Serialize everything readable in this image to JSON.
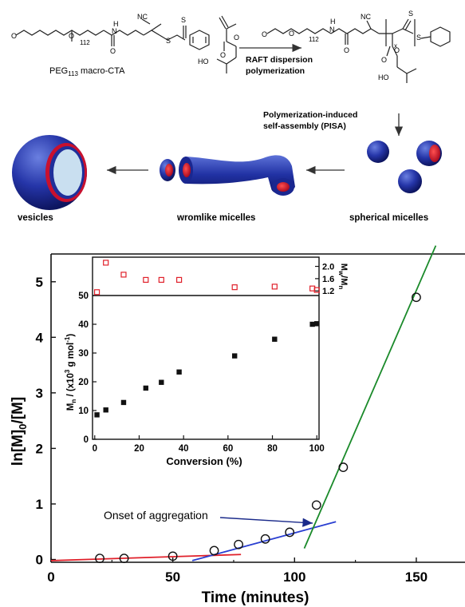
{
  "scheme": {
    "macro_cta_label": "PEG",
    "macro_cta_sub": "113",
    "macro_cta_suffix": " macro-CTA",
    "peg_repeat_sub": "112",
    "nc_label": "NC",
    "s_label": "S",
    "o_label": "O",
    "h_label": "H",
    "n_label": "N",
    "ho_label": "HO",
    "x_sub": "x",
    "raft_label_1": "RAFT dispersion",
    "raft_label_2": "polymerization",
    "pisa_label_1": "Polymerization-induced",
    "pisa_label_2": "self-assembly (PISA)",
    "morphologies": [
      {
        "label": "vesicles"
      },
      {
        "label": "wromlike micelles"
      },
      {
        "label": "spherical micelles"
      }
    ],
    "colors": {
      "core_red": "#c8102e",
      "corona_blue": "#1f2f9a",
      "lumen": "#c9dff0"
    }
  },
  "chart_data": [
    {
      "type": "scatter",
      "xlabel": "Time (minutes)",
      "ylabel_text": "ln[M]",
      "ylabel_sub1": "0",
      "ylabel_tail": "/[M]",
      "xlim": [
        0,
        170
      ],
      "ylim": [
        -0.05,
        5.5
      ],
      "xticks": [
        0,
        50,
        100,
        150
      ],
      "yticks": [
        0,
        1,
        2,
        3,
        4,
        5
      ],
      "annotation": "Onset of aggregation",
      "points": [
        {
          "x": 20,
          "y": 0.02
        },
        {
          "x": 30,
          "y": 0.02
        },
        {
          "x": 50,
          "y": 0.06
        },
        {
          "x": 67,
          "y": 0.16
        },
        {
          "x": 77,
          "y": 0.27
        },
        {
          "x": 88,
          "y": 0.37
        },
        {
          "x": 98,
          "y": 0.49
        },
        {
          "x": 109,
          "y": 0.98
        },
        {
          "x": 120,
          "y": 1.66
        },
        {
          "x": 150,
          "y": 4.72
        }
      ],
      "fit_lines": [
        {
          "color": "#e0202a",
          "x": [
            0,
            78
          ],
          "y": [
            -0.02,
            0.09
          ]
        },
        {
          "color": "#2a3fd1",
          "x": [
            58,
            117
          ],
          "y": [
            -0.02,
            0.68
          ]
        },
        {
          "color": "#1a8a2a",
          "x": [
            104,
            158
          ],
          "y": [
            0.2,
            5.65
          ]
        }
      ],
      "grid": false,
      "marker": "open-circle"
    },
    {
      "type": "scatter",
      "xlabel": "Conversion (%)",
      "ylabel_text": "M",
      "ylabel_sub": "n",
      "ylabel_tail": " / (x10",
      "ylabel_sup": "3",
      "ylabel_end": " g mol",
      "ylabel_sup2": "-1",
      "ylabel_close": ")",
      "xlim": [
        -1,
        101
      ],
      "ylim": [
        0,
        50
      ],
      "xticks": [
        0,
        20,
        40,
        60,
        80,
        100
      ],
      "yticks": [
        0,
        10,
        20,
        30,
        40,
        50
      ],
      "points": [
        {
          "x": 1,
          "y": 8.5
        },
        {
          "x": 5,
          "y": 10.2
        },
        {
          "x": 13,
          "y": 12.8
        },
        {
          "x": 23,
          "y": 17.8
        },
        {
          "x": 30,
          "y": 19.8
        },
        {
          "x": 38,
          "y": 23.4
        },
        {
          "x": 63,
          "y": 29
        },
        {
          "x": 81,
          "y": 34.8
        },
        {
          "x": 98,
          "y": 40
        },
        {
          "x": 100,
          "y": 40.2
        }
      ],
      "marker": "filled-square"
    },
    {
      "type": "scatter",
      "ylabel_text": "M",
      "ylabel_sub1": "w",
      "ylabel_mid": "/M",
      "ylabel_sub2": "n",
      "xlim": [
        -1,
        101
      ],
      "ylim": [
        1.05,
        2.3
      ],
      "yticks": [
        1.2,
        1.6,
        2.0
      ],
      "points": [
        {
          "x": 1,
          "y": 1.16
        },
        {
          "x": 5,
          "y": 2.12
        },
        {
          "x": 13,
          "y": 1.73
        },
        {
          "x": 23,
          "y": 1.56
        },
        {
          "x": 30,
          "y": 1.56
        },
        {
          "x": 38,
          "y": 1.56
        },
        {
          "x": 63,
          "y": 1.32
        },
        {
          "x": 81,
          "y": 1.34
        },
        {
          "x": 98,
          "y": 1.28
        },
        {
          "x": 100,
          "y": 1.23
        }
      ],
      "marker": "open-square",
      "color": "#e0202a"
    }
  ]
}
